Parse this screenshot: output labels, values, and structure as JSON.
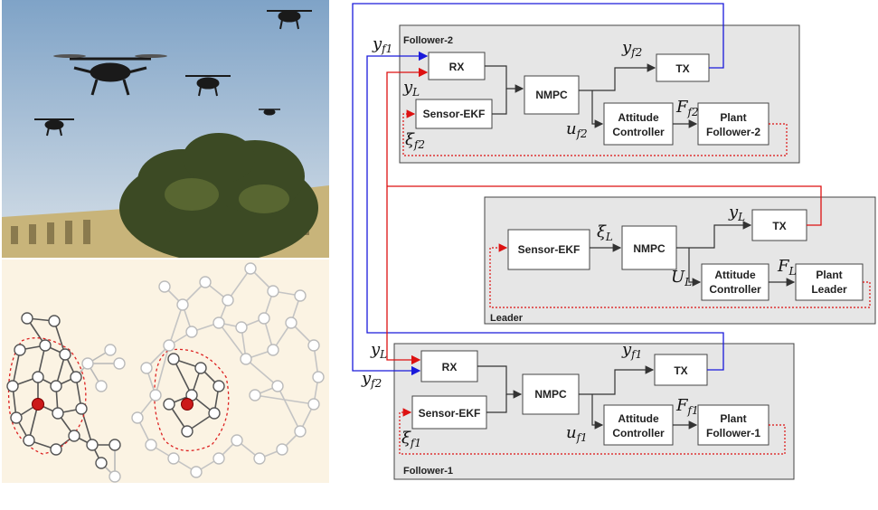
{
  "photo": {
    "description_icon": "drone-swarm-photo"
  },
  "graph": {
    "description_icon": "network-graph"
  },
  "panels": {
    "follower2": {
      "title": "Follower-2"
    },
    "leader": {
      "title": "Leader"
    },
    "follower1": {
      "title": "Follower-1"
    }
  },
  "blocks": {
    "rx": "RX",
    "tx": "TX",
    "sensor_ekf": "Sensor-EKF",
    "nmpc": "NMPC",
    "attitude_1": "Attitude",
    "attitude_2": "Controller",
    "plant": "Plant",
    "plant_f2": "Follower-2",
    "plant_leader": "Leader",
    "plant_f1": "Follower-1"
  },
  "labels": {
    "y": "y",
    "xi": "ξ",
    "u": "u",
    "U": "U",
    "F": "F",
    "sub_f1": "f1",
    "sub_f2": "f2",
    "sub_L": "L"
  },
  "colors": {
    "blue": "#1a1adb",
    "red": "#dd1111",
    "panel": "#e6e6e6"
  }
}
